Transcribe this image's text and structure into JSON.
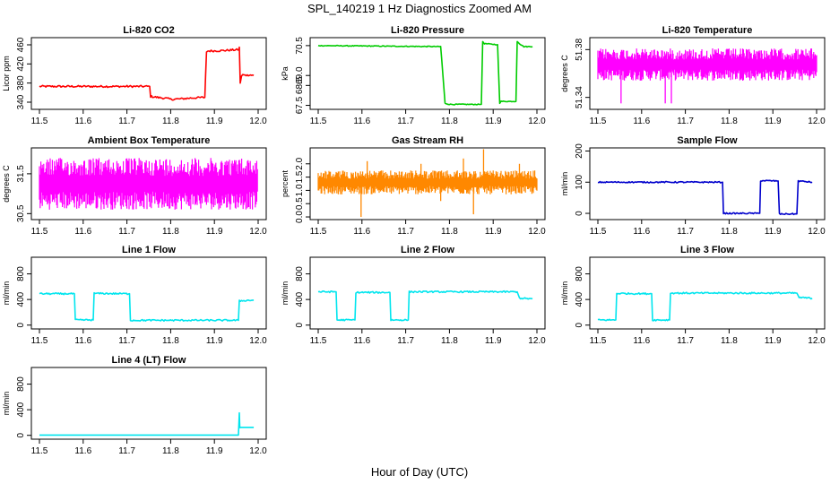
{
  "page": {
    "title": "SPL_140219 1 Hz Diagnostics Zoomed AM",
    "xlabel": "Hour of Day (UTC)"
  },
  "chart_data": [
    {
      "id": "li820-co2",
      "type": "line",
      "title": "Li-820 CO2",
      "ylabel": "Licor ppm",
      "xlim": [
        11.5,
        12.0
      ],
      "xticks": [
        11.5,
        11.6,
        11.7,
        11.8,
        11.9,
        12.0
      ],
      "ylim": [
        325,
        475
      ],
      "yticks": [
        340,
        380,
        420,
        460
      ],
      "color": "#ff0000",
      "noise": 2,
      "series": [
        {
          "x": [
            11.5,
            11.752,
            11.754,
            11.77,
            11.79,
            11.8,
            11.825,
            11.85,
            11.878,
            11.882,
            11.885,
            11.92,
            11.956,
            11.957,
            11.959,
            11.962,
            11.965,
            11.97,
            11.99
          ],
          "y": [
            373,
            373,
            352,
            350,
            348,
            346,
            347,
            349,
            350,
            445,
            447,
            448,
            450,
            455,
            380,
            395,
            398,
            396,
            396
          ]
        }
      ]
    },
    {
      "id": "li820-pressure",
      "type": "line",
      "title": "Li-820 Pressure",
      "ylabel": "kPa",
      "xlim": [
        11.5,
        12.0
      ],
      "xticks": [
        11.5,
        11.6,
        11.7,
        11.8,
        11.9,
        12.0
      ],
      "ylim": [
        67.3,
        70.9
      ],
      "yticks": [
        67.5,
        68.5,
        69.0,
        70.5
      ],
      "ytick_labels": [
        "67.5",
        "68.5",
        "69.0",
        "70.5"
      ],
      "color": "#00cc00",
      "noise": 0.02,
      "series": [
        {
          "x": [
            11.5,
            11.78,
            11.79,
            11.8,
            11.873,
            11.876,
            11.88,
            11.91,
            11.915,
            11.918,
            11.952,
            11.955,
            11.96,
            11.97,
            11.99
          ],
          "y": [
            70.5,
            70.45,
            67.6,
            67.55,
            67.55,
            70.7,
            70.6,
            70.55,
            67.6,
            67.7,
            67.7,
            70.7,
            70.6,
            70.45,
            70.45
          ]
        }
      ]
    },
    {
      "id": "li820-temperature",
      "type": "line",
      "title": "Li-820 Temperature",
      "ylabel": "degrees C",
      "xlim": [
        11.5,
        12.0
      ],
      "xticks": [
        11.5,
        11.6,
        11.7,
        11.8,
        11.9,
        12.0
      ],
      "ylim": [
        51.33,
        51.39
      ],
      "yticks": [
        51.34,
        51.38
      ],
      "ytick_labels": [
        "51.34",
        "51.38"
      ],
      "color": "#ff00ff",
      "band": [
        51.354,
        51.381
      ],
      "spikes": [
        {
          "x": 11.553,
          "y": 51.335
        },
        {
          "x": 11.654,
          "y": 51.335
        },
        {
          "x": 11.668,
          "y": 51.335
        }
      ],
      "series": [
        {
          "x": [
            11.5,
            12.0
          ],
          "y": [
            51.3675,
            51.3675
          ]
        }
      ]
    },
    {
      "id": "ambient-box-temperature",
      "type": "line",
      "title": "Ambient Box Temperature",
      "ylabel": "degrees C",
      "xlim": [
        11.5,
        12.0
      ],
      "xticks": [
        11.5,
        11.6,
        11.7,
        11.8,
        11.9,
        12.0
      ],
      "ylim": [
        30.35,
        32.15
      ],
      "yticks": [
        30.5,
        31.5
      ],
      "ytick_labels": [
        "30.5",
        "31.5"
      ],
      "color": "#ff00ff",
      "band": [
        30.6,
        31.9
      ],
      "series": [
        {
          "x": [
            11.5,
            12.0
          ],
          "y": [
            31.2,
            31.2
          ]
        }
      ]
    },
    {
      "id": "gas-stream-rh",
      "type": "line",
      "title": "Gas Stream RH",
      "ylabel": "percent",
      "xlim": [
        11.5,
        12.0
      ],
      "xticks": [
        11.5,
        11.6,
        11.7,
        11.8,
        11.9,
        12.0
      ],
      "ylim": [
        -0.1,
        2.6
      ],
      "yticks": [
        0.0,
        0.5,
        1.0,
        1.5,
        2.0
      ],
      "ytick_labels": [
        "0.0",
        "0.5",
        "1.0",
        "1.5",
        "2.0"
      ],
      "color": "#ff8800",
      "band": [
        0.85,
        1.75
      ],
      "spikes": [
        {
          "x": 11.598,
          "y": 0.0
        },
        {
          "x": 11.612,
          "y": 2.1
        },
        {
          "x": 11.735,
          "y": 2.0
        },
        {
          "x": 11.78,
          "y": 0.6
        },
        {
          "x": 11.832,
          "y": 2.2
        },
        {
          "x": 11.855,
          "y": 0.1
        },
        {
          "x": 11.878,
          "y": 2.55
        },
        {
          "x": 11.96,
          "y": 2.0
        }
      ],
      "series": [
        {
          "x": [
            11.5,
            12.0
          ],
          "y": [
            1.3,
            1.3
          ]
        }
      ]
    },
    {
      "id": "sample-flow",
      "type": "line",
      "title": "Sample Flow",
      "ylabel": "ml/min",
      "xlim": [
        11.5,
        12.0
      ],
      "xticks": [
        11.5,
        11.6,
        11.7,
        11.8,
        11.9,
        12.0
      ],
      "ylim": [
        -20,
        210
      ],
      "yticks": [
        0,
        100,
        200
      ],
      "color": "#0000cc",
      "noise": 2,
      "series": [
        {
          "x": [
            11.5,
            11.785,
            11.787,
            11.87,
            11.872,
            11.912,
            11.915,
            11.955,
            11.958,
            11.99
          ],
          "y": [
            100,
            100,
            0,
            0,
            105,
            104,
            -2,
            -2,
            104,
            100
          ]
        }
      ]
    },
    {
      "id": "line-1-flow",
      "type": "line",
      "title": "Line 1 Flow",
      "ylabel": "ml/min",
      "xlim": [
        11.5,
        12.0
      ],
      "xticks": [
        11.5,
        11.6,
        11.7,
        11.8,
        11.9,
        12.0
      ],
      "ylim": [
        -60,
        1060
      ],
      "yticks": [
        0,
        400,
        800
      ],
      "color": "#00e5ee",
      "noise": 12,
      "series": [
        {
          "x": [
            11.5,
            11.58,
            11.582,
            11.623,
            11.625,
            11.706,
            11.708,
            11.955,
            11.957,
            11.99
          ],
          "y": [
            490,
            490,
            80,
            80,
            495,
            490,
            75,
            75,
            380,
            390
          ]
        }
      ]
    },
    {
      "id": "line-2-flow",
      "type": "line",
      "title": "Line 2 Flow",
      "ylabel": "ml/min",
      "xlim": [
        11.5,
        12.0
      ],
      "xticks": [
        11.5,
        11.6,
        11.7,
        11.8,
        11.9,
        12.0
      ],
      "ylim": [
        -60,
        1060
      ],
      "yticks": [
        0,
        400,
        800
      ],
      "color": "#00e5ee",
      "noise": 12,
      "series": [
        {
          "x": [
            11.5,
            11.541,
            11.543,
            11.584,
            11.586,
            11.664,
            11.666,
            11.706,
            11.708,
            11.955,
            11.96,
            11.99
          ],
          "y": [
            520,
            520,
            80,
            80,
            510,
            510,
            80,
            80,
            520,
            520,
            420,
            410
          ]
        }
      ]
    },
    {
      "id": "line-3-flow",
      "type": "line",
      "title": "Line 3 Flow",
      "ylabel": "ml/min",
      "xlim": [
        11.5,
        12.0
      ],
      "xticks": [
        11.5,
        11.6,
        11.7,
        11.8,
        11.9,
        12.0
      ],
      "ylim": [
        -60,
        1060
      ],
      "yticks": [
        0,
        400,
        800
      ],
      "color": "#00e5ee",
      "noise": 12,
      "series": [
        {
          "x": [
            11.5,
            11.541,
            11.543,
            11.623,
            11.625,
            11.664,
            11.666,
            11.955,
            11.96,
            11.99
          ],
          "y": [
            80,
            80,
            495,
            490,
            80,
            80,
            500,
            500,
            430,
            420
          ]
        }
      ]
    },
    {
      "id": "line-4-lt-flow",
      "type": "line",
      "title": "Line 4 (LT) Flow",
      "ylabel": "ml/min",
      "xlim": [
        11.5,
        12.0
      ],
      "xticks": [
        11.5,
        11.6,
        11.7,
        11.8,
        11.9,
        12.0
      ],
      "ylim": [
        -60,
        1060
      ],
      "yticks": [
        0,
        400,
        800
      ],
      "color": "#00e5ee",
      "noise": 0,
      "series": [
        {
          "x": [
            11.5,
            11.955,
            11.957,
            11.958,
            11.96,
            11.99
          ],
          "y": [
            5,
            5,
            350,
            120,
            125,
            125
          ]
        }
      ]
    }
  ]
}
